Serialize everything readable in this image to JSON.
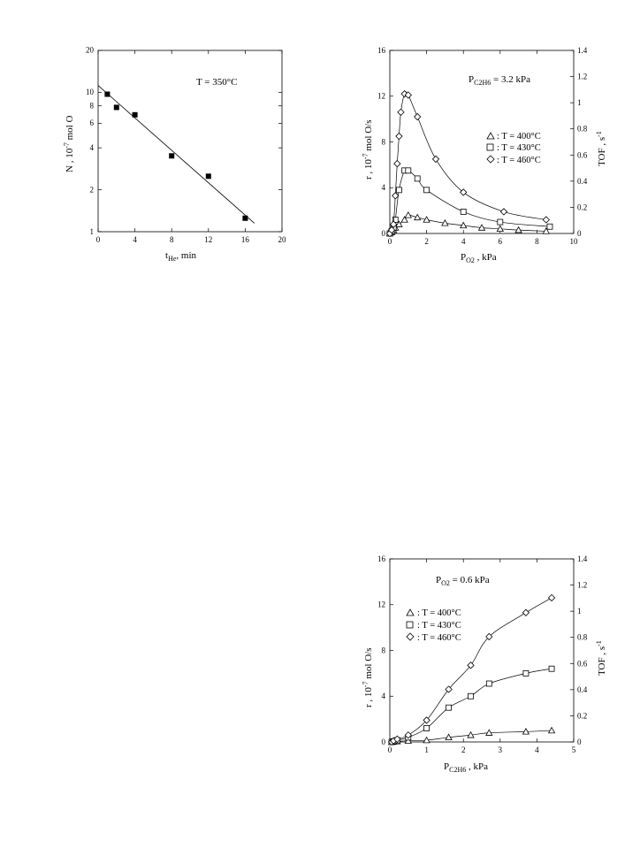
{
  "colors": {
    "ink": "#000000",
    "background": "#ffffff"
  },
  "chart_data": [
    {
      "id": "chart1",
      "type": "scatter",
      "annotation": "T = 350°C",
      "xlabel_main": "t",
      "xlabel_sub": "He",
      "xlabel_unit": ", min",
      "ylabel_text": "N  , 10",
      "ylabel_exp": "-7",
      "ylabel_unit": " mol O",
      "xlim": [
        0,
        20
      ],
      "ylim": [
        1,
        20
      ],
      "y_scale": "log",
      "x_ticks": [
        "0",
        "4",
        "8",
        "12",
        "16",
        "20"
      ],
      "y_ticks": [
        "1",
        "2",
        "4",
        "6",
        "8",
        "10",
        "20"
      ],
      "y_tick_values": [
        1,
        2,
        4,
        6,
        8,
        10,
        20
      ],
      "series": [
        {
          "marker": "filled-square",
          "x": [
            1,
            2,
            4,
            8,
            12,
            16
          ],
          "y": [
            9.7,
            7.8,
            6.9,
            3.5,
            2.5,
            1.25
          ]
        }
      ],
      "fit_line": {
        "x": [
          0,
          17
        ],
        "y": [
          11.2,
          1.15
        ]
      }
    },
    {
      "id": "chart2",
      "type": "line",
      "annotation_main": "P",
      "annotation_sub": "C2H6",
      "annotation_value": " = 3.2 kPa",
      "xlabel_main": "P",
      "xlabel_sub": "O2",
      "xlabel_unit": " , kPa",
      "ylabel_text": "r , 10",
      "ylabel_exp": "-7",
      "ylabel_unit": " mol O/s",
      "y2label_text": "TOF , s",
      "y2label_exp": "-1",
      "xlim": [
        0,
        10
      ],
      "ylim": [
        0,
        16
      ],
      "y2lim": [
        0,
        1.4
      ],
      "x_ticks": [
        "0",
        "2",
        "4",
        "6",
        "8",
        "10"
      ],
      "y_ticks": [
        "0",
        "4",
        "8",
        "12",
        "16"
      ],
      "y2_ticks": [
        "0",
        "0.2",
        "0.4",
        "0.6",
        "0.8",
        "1",
        "1.2",
        "1.4"
      ],
      "series": [
        {
          "name": ": T = 400°C",
          "marker": "triangle",
          "x": [
            0,
            0.1,
            0.2,
            0.3,
            0.5,
            0.8,
            1.0,
            1.5,
            2.0,
            3.0,
            4.0,
            5.0,
            6.0,
            7.0,
            8.5
          ],
          "y": [
            0,
            0.1,
            0.3,
            0.5,
            0.8,
            1.2,
            1.6,
            1.4,
            1.2,
            0.9,
            0.7,
            0.5,
            0.4,
            0.3,
            0.2
          ]
        },
        {
          "name": ": T = 430°C",
          "marker": "square",
          "x": [
            0,
            0.1,
            0.2,
            0.3,
            0.5,
            0.8,
            1.0,
            1.5,
            2.0,
            4.0,
            6.0,
            8.7
          ],
          "y": [
            0,
            0.2,
            0.5,
            1.2,
            3.8,
            5.5,
            5.5,
            4.8,
            3.8,
            1.9,
            1.0,
            0.6
          ]
        },
        {
          "name": ": T = 460°C",
          "marker": "diamond",
          "x": [
            0,
            0.1,
            0.2,
            0.3,
            0.4,
            0.5,
            0.6,
            0.8,
            1.0,
            1.5,
            2.5,
            4.0,
            6.2,
            8.5
          ],
          "y": [
            0,
            0.3,
            0.8,
            3.3,
            6.1,
            8.5,
            10.6,
            12.2,
            12.1,
            10.2,
            6.5,
            3.6,
            1.9,
            1.2
          ]
        }
      ]
    },
    {
      "id": "chart3",
      "type": "line",
      "annotation_main": "P",
      "annotation_sub": "O2",
      "annotation_value": " = 0.6 kPa",
      "xlabel_main": "P",
      "xlabel_sub": "C2H6",
      "xlabel_unit": " , kPa",
      "ylabel_text": "r , 10",
      "ylabel_exp": "-7",
      "ylabel_unit": " mol O/s",
      "y2label_text": "TOF , s",
      "y2label_exp": "-1",
      "xlim": [
        0,
        5
      ],
      "ylim": [
        0,
        16
      ],
      "y2lim": [
        0,
        1.4
      ],
      "x_ticks": [
        "0",
        "1",
        "2",
        "3",
        "4",
        "5"
      ],
      "y_ticks": [
        "0",
        "4",
        "8",
        "12",
        "16"
      ],
      "y2_ticks": [
        "0",
        "0.2",
        "0.4",
        "0.6",
        "0.8",
        "1",
        "1.2",
        "1.4"
      ],
      "series": [
        {
          "name": ": T = 400°C",
          "marker": "triangle",
          "x": [
            0.05,
            0.1,
            0.2,
            0.5,
            1.0,
            1.6,
            2.2,
            2.7,
            3.7,
            4.4
          ],
          "y": [
            0,
            0.02,
            0.05,
            0.1,
            0.15,
            0.4,
            0.6,
            0.8,
            0.9,
            1.0
          ]
        },
        {
          "name": ": T = 430°C",
          "marker": "square",
          "x": [
            0.05,
            0.1,
            0.2,
            0.5,
            1.0,
            1.6,
            2.2,
            2.7,
            3.7,
            4.4
          ],
          "y": [
            0,
            0.05,
            0.15,
            0.4,
            1.2,
            3.0,
            4.0,
            5.1,
            6.0,
            6.4
          ]
        },
        {
          "name": ": T = 460°C",
          "marker": "diamond",
          "x": [
            0.05,
            0.1,
            0.2,
            0.5,
            1.0,
            1.6,
            2.2,
            2.7,
            3.7,
            4.4
          ],
          "y": [
            0,
            0.1,
            0.25,
            0.6,
            1.9,
            4.6,
            6.7,
            9.2,
            11.3,
            12.6
          ]
        }
      ]
    }
  ]
}
